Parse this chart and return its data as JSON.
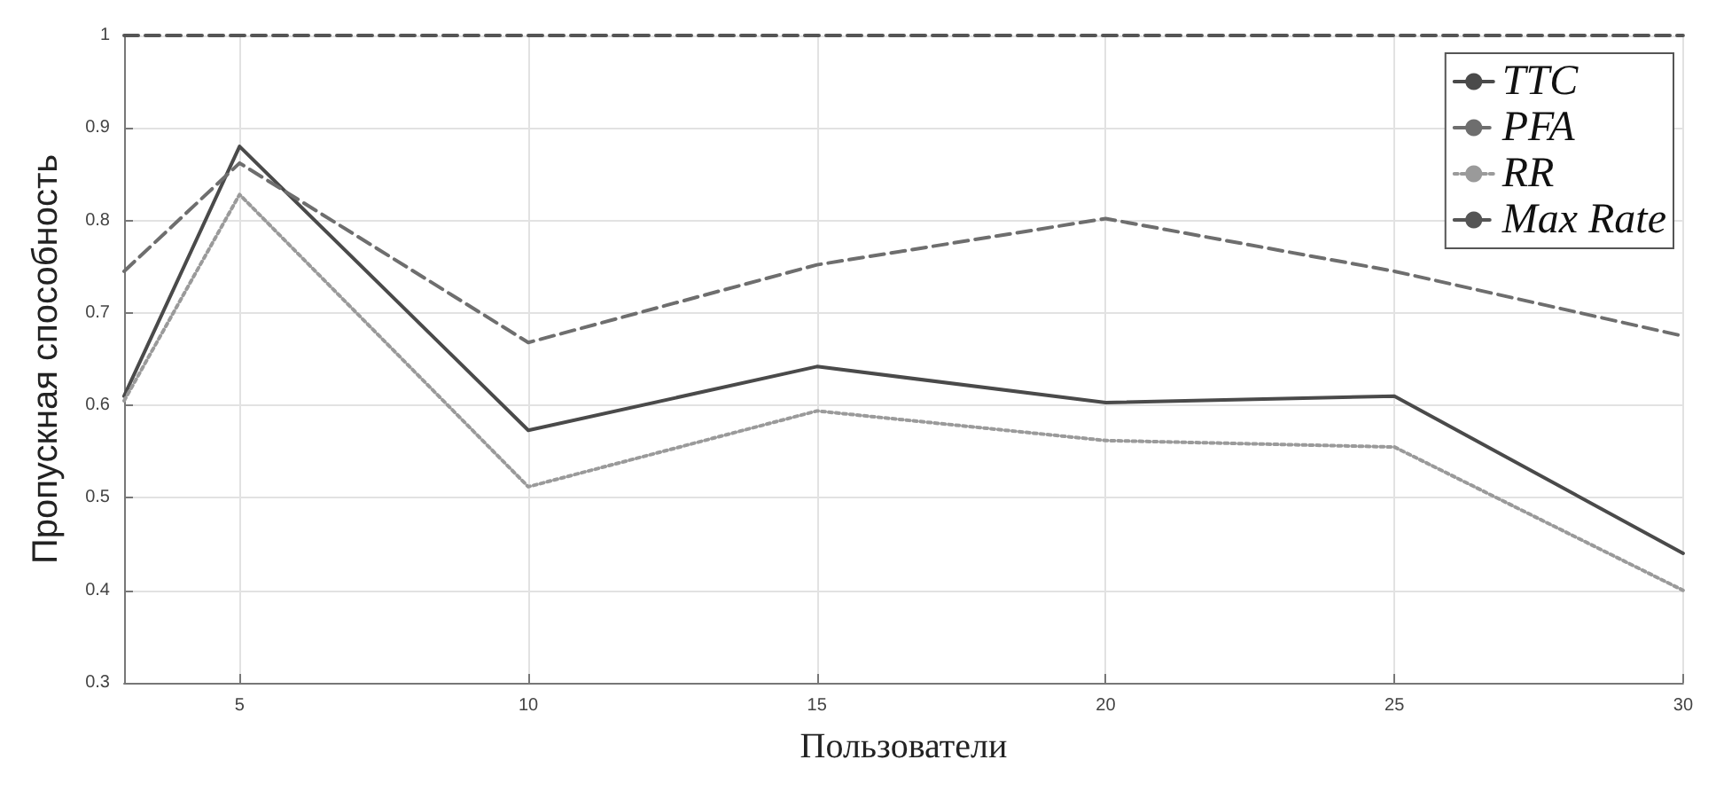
{
  "chart_data": {
    "type": "line",
    "xlabel": "Пользователи",
    "ylabel": "Пропускная способность",
    "x": [
      3,
      5,
      10,
      15,
      20,
      25,
      30
    ],
    "series": [
      {
        "name": "TTC",
        "color": "#4a4a4a",
        "line_style": "solid",
        "values": [
          0.61,
          0.88,
          0.573,
          0.642,
          0.603,
          0.61,
          0.44
        ]
      },
      {
        "name": "PFA",
        "color": "#6e6e6e",
        "line_style": "dashed",
        "values": [
          0.745,
          0.862,
          0.668,
          0.752,
          0.802,
          0.745,
          0.675
        ]
      },
      {
        "name": "RR",
        "color": "#9a9a9a",
        "line_style": "dotted",
        "values": [
          0.605,
          0.828,
          0.512,
          0.594,
          0.562,
          0.555,
          0.4
        ]
      },
      {
        "name": "Max Rate",
        "color": "#555555",
        "line_style": "dashed",
        "values": [
          1,
          1,
          1,
          1,
          1,
          1,
          1
        ]
      }
    ],
    "xlim": [
      3,
      30
    ],
    "xticks": [
      5,
      10,
      15,
      20,
      25,
      30
    ],
    "ylim": [
      0.3,
      1
    ],
    "yticks": [
      0.3,
      0.4,
      0.5,
      0.6,
      0.7,
      0.8,
      0.9,
      1
    ],
    "grid": true,
    "legend": "top right",
    "marker": "none"
  }
}
